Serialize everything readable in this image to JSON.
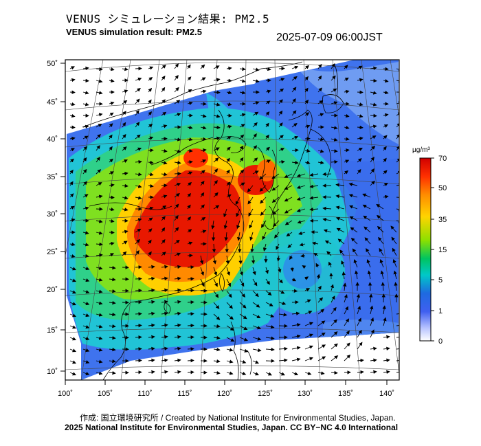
{
  "header": {
    "title_jp": "VENUS シミュレーション結果: PM2.5",
    "title_en": "VENUS simulation result: PM2.5",
    "timestamp": "2025-07-09 06:00JST"
  },
  "map": {
    "lon_ticks": [
      "100˚",
      "105˚",
      "110˚",
      "115˚",
      "120˚",
      "125˚",
      "130˚",
      "135˚",
      "140˚"
    ],
    "lat_ticks": [
      "50˚",
      "45˚",
      "40˚",
      "35˚",
      "30˚",
      "25˚",
      "20˚",
      "15˚",
      "10˚"
    ],
    "typhoon_center": {
      "lon": 129,
      "lat": 23
    }
  },
  "colorbar": {
    "unit": "µg/m³",
    "labels": [
      "70",
      "50",
      "35",
      "15",
      "5",
      "1",
      "0"
    ],
    "colors": [
      "#e00000",
      "#ff6a00",
      "#ffd200",
      "#8fe000",
      "#00c860",
      "#00c8c8",
      "#1e5ad0",
      "#4070ff",
      "#c8d0ff",
      "#ffffff"
    ]
  },
  "footer": {
    "credit": "作成: 国立環境研究所 / Created by National Institute for Environmental Studies, Japan.",
    "copyright": "2025 National Institute for Environmental Studies, Japan. CC BY−NC 4.0 International"
  }
}
